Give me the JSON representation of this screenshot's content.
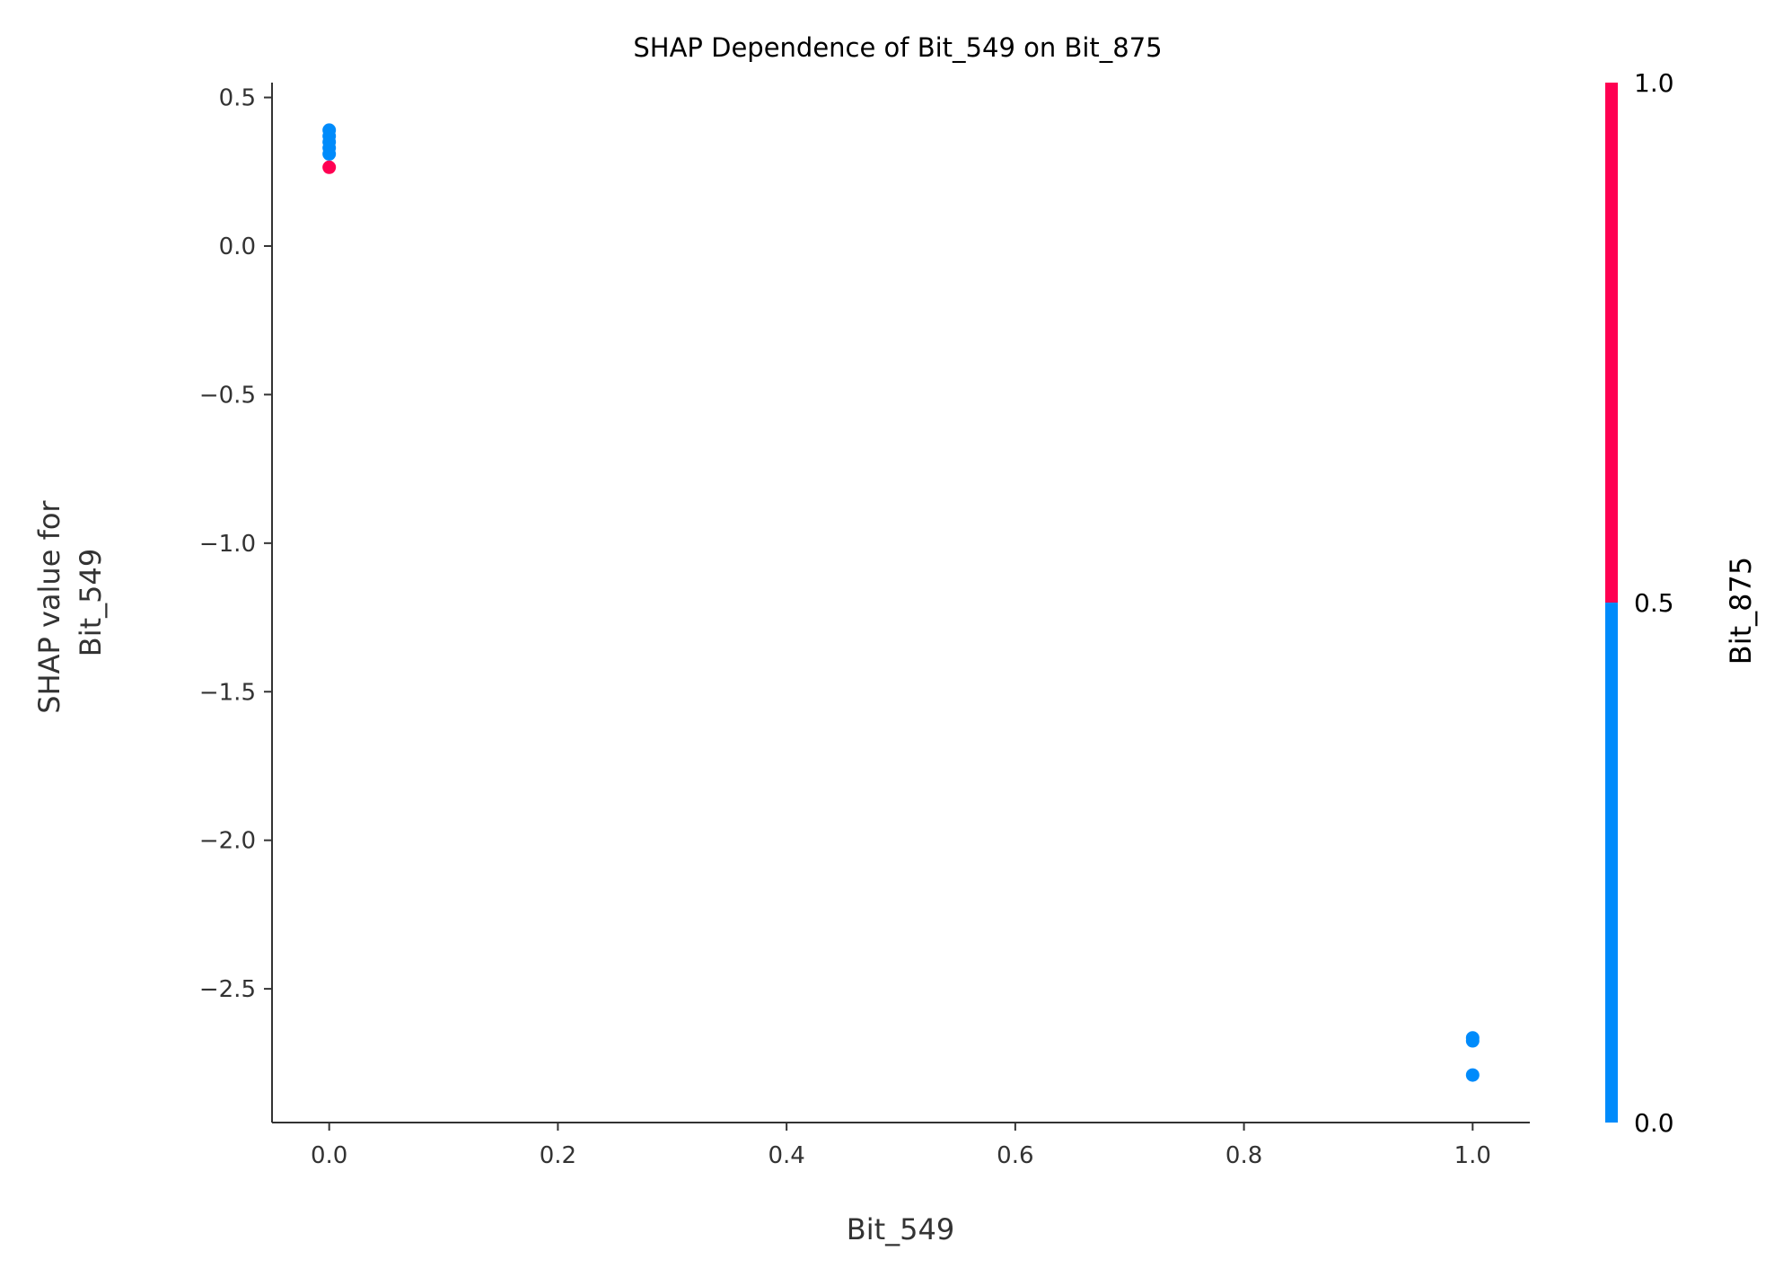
{
  "chart_data": {
    "type": "scatter",
    "title": "SHAP Dependence of Bit_549 on Bit_875",
    "xlabel": "Bit_549",
    "ylabel": [
      "SHAP value for",
      "Bit_549"
    ],
    "xlim": [
      -0.05,
      1.05
    ],
    "ylim": [
      -2.95,
      0.55
    ],
    "xticks": [
      0.0,
      0.2,
      0.4,
      0.6,
      0.8,
      1.0
    ],
    "xtick_labels": [
      "0.0",
      "0.2",
      "0.4",
      "0.6",
      "0.8",
      "1.0"
    ],
    "yticks": [
      0.5,
      0.0,
      -0.5,
      -1.0,
      -1.5,
      -2.0,
      -2.5
    ],
    "ytick_labels": [
      "0.5",
      "0.0",
      "−0.5",
      "−1.0",
      "−1.5",
      "−2.0",
      "−2.5"
    ],
    "grid": false,
    "colorbar": {
      "label": "Bit_875",
      "range": [
        0.0,
        1.0
      ],
      "ticks": [
        0.0,
        0.5,
        1.0
      ],
      "tick_labels": [
        "0.0",
        "0.5",
        "1.0"
      ],
      "low_color": "#008bfb",
      "high_color": "#ff0052"
    },
    "points": [
      {
        "x": 0.0,
        "y": 0.39,
        "c": 0
      },
      {
        "x": 0.0,
        "y": 0.37,
        "c": 0
      },
      {
        "x": 0.0,
        "y": 0.35,
        "c": 0
      },
      {
        "x": 0.0,
        "y": 0.33,
        "c": 0
      },
      {
        "x": 0.0,
        "y": 0.31,
        "c": 0
      },
      {
        "x": 0.0,
        "y": 0.265,
        "c": 1
      },
      {
        "x": 1.0,
        "y": -2.665,
        "c": 0
      },
      {
        "x": 1.0,
        "y": -2.675,
        "c": 0
      },
      {
        "x": 1.0,
        "y": -2.79,
        "c": 0
      }
    ]
  }
}
